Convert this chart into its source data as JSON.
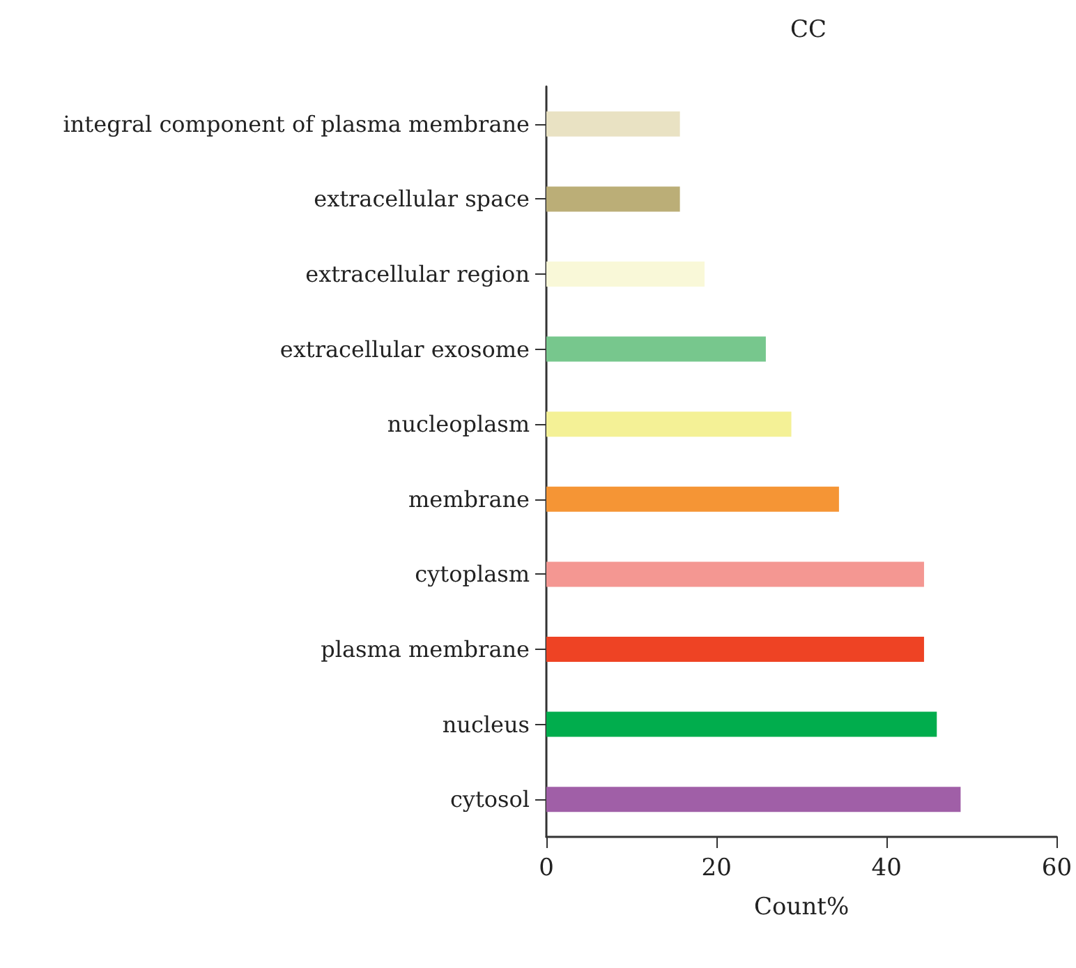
{
  "chart_data": {
    "type": "bar",
    "orientation": "horizontal",
    "title": "CC",
    "xlabel": "Count%",
    "categories": [
      "integral component of plasma membrane",
      "extracellular space",
      "extracellular region",
      "extracellular exosome",
      "nucleoplasm",
      "membrane",
      "cytoplasm",
      "plasma membrane",
      "nucleus",
      "cytosol"
    ],
    "values": [
      15.7,
      15.7,
      18.6,
      25.8,
      28.8,
      34.4,
      44.4,
      44.4,
      45.9,
      48.7
    ],
    "colors": [
      "#e9e2c3",
      "#bbae77",
      "#f9f8d8",
      "#77c78d",
      "#f4f196",
      "#f59535",
      "#f49792",
      "#ee4324",
      "#01ad4d",
      "#a05fa7"
    ],
    "xlim": [
      0,
      60
    ],
    "xticks": [
      0,
      20,
      40,
      60
    ],
    "grid": false
  }
}
